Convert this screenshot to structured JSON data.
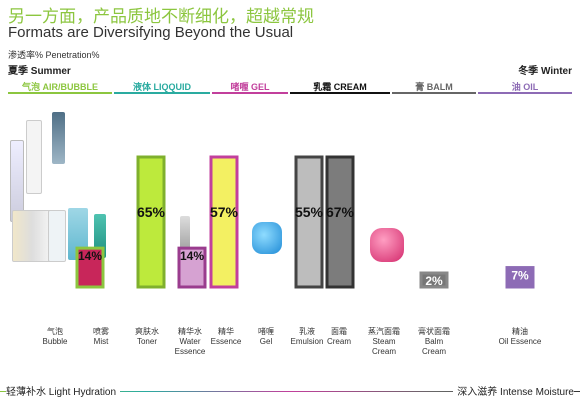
{
  "header": {
    "title_cn": "另一方面，产品质地不断细化，超越常规",
    "title_en": "Formats are Diversifying Beyond the Usual",
    "penetration_label": "渗透率% Penetration%",
    "summer": "夏季 Summer",
    "winter": "冬季 Winter"
  },
  "categories": [
    {
      "label": "气泡 AIR/BUBBLE",
      "color": "#8cc63f"
    },
    {
      "label": "液体 LIQQUID",
      "color": "#2aaba0"
    },
    {
      "label": "啫喱 GEL",
      "color": "#c23f9c"
    },
    {
      "label": "乳霜 CREAM",
      "color": "#111111"
    },
    {
      "label": "膏 BALM",
      "color": "#666666"
    },
    {
      "label": "油 OIL",
      "color": "#8d6bb5"
    }
  ],
  "footer": {
    "left": "轻薄补水 Light Hydration",
    "right": "深入滋养 Intense Moisture"
  },
  "chart_data": {
    "type": "bar",
    "title": "Formats are Diversifying Beyond the Usual",
    "ylabel": "渗透率% Penetration%",
    "ylim": [
      0,
      100
    ],
    "bars": [
      {
        "name": "Mist",
        "value": 14,
        "label": "14%",
        "fill": "#c8265a",
        "stroke": "#8cc63f"
      },
      {
        "name": "Toner",
        "value": 65,
        "label": "65%",
        "fill": "#bdea3c",
        "stroke": "#7fb02d"
      },
      {
        "name": "Water Essence",
        "value": 14,
        "label": "14%",
        "fill": "#d6a2d2",
        "stroke": "#9a3c8e"
      },
      {
        "name": "Essence",
        "value": 57,
        "label": "57%",
        "fill": "#f3f062",
        "stroke": "#c23f9c"
      },
      {
        "name": "Emulsion",
        "value": 55,
        "label": "55%",
        "fill": "#bdbdbd",
        "stroke": "#444444"
      },
      {
        "name": "Cream",
        "value": 67,
        "label": "67%",
        "fill": "#7c7c7c",
        "stroke": "#333333"
      },
      {
        "name": "Balm Cream",
        "value": 2,
        "label": "2%",
        "fill": "#777777",
        "stroke": "#888888"
      },
      {
        "name": "Oil Essence",
        "value": 7,
        "label": "7%",
        "fill": "#8d6bb5",
        "stroke": "#8d6bb5"
      }
    ],
    "columns": [
      {
        "cn": "气泡",
        "en": "Bubble"
      },
      {
        "cn": "喷雾",
        "en": "Mist"
      },
      {
        "cn": "爽肤水",
        "en": "Toner"
      },
      {
        "cn": "精华水",
        "en": "Water\nEssence"
      },
      {
        "cn": "精华",
        "en": "Essence"
      },
      {
        "cn": "啫喱",
        "en": "Gel"
      },
      {
        "cn": "乳液",
        "en": "Emulsion"
      },
      {
        "cn": "面霜",
        "en": "Cream"
      },
      {
        "cn": "蒸汽面霜",
        "en": "Steam\nCream"
      },
      {
        "cn": "膏状面霜",
        "en": "Balm\nCream"
      },
      {
        "cn": "精油",
        "en": "Oil Essence"
      }
    ]
  }
}
